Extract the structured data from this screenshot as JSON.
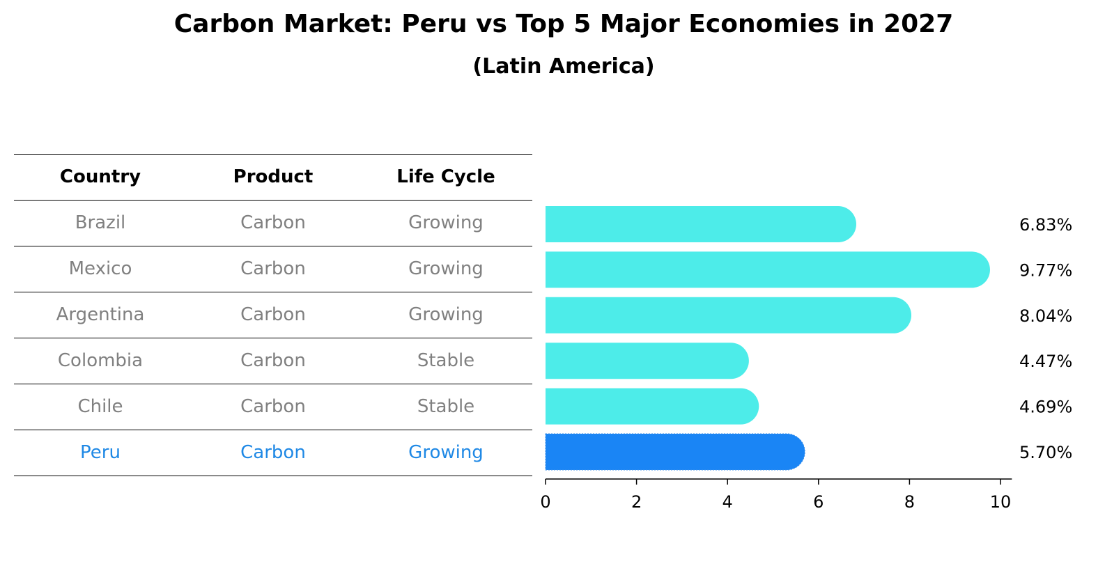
{
  "title": "Carbon Market: Peru vs Top 5 Major Economies in 2027",
  "subtitle": "(Latin America)",
  "table": {
    "headers": [
      "Country",
      "Product",
      "Life Cycle"
    ],
    "rows": [
      [
        "Brazil",
        "Carbon",
        "Growing"
      ],
      [
        "Mexico",
        "Carbon",
        "Growing"
      ],
      [
        "Argentina",
        "Carbon",
        "Growing"
      ],
      [
        "Colombia",
        "Carbon",
        "Stable"
      ],
      [
        "Chile",
        "Carbon",
        "Stable"
      ],
      [
        "Peru",
        "Carbon",
        "Growing"
      ]
    ]
  },
  "colors": {
    "bar": "#4dece9",
    "highlight": "#1a85f5",
    "muted_text": "#808080",
    "highlight_text": "#1e88e5"
  },
  "chart_data": {
    "type": "bar",
    "orientation": "horizontal",
    "categories": [
      "Brazil",
      "Mexico",
      "Argentina",
      "Colombia",
      "Chile",
      "Peru"
    ],
    "values": [
      6.83,
      9.77,
      8.04,
      4.47,
      4.69,
      5.7
    ],
    "value_labels": [
      "6.83%",
      "9.77%",
      "8.04%",
      "4.47%",
      "4.69%",
      "5.70%"
    ],
    "highlight": "Peru",
    "xlim": [
      0,
      10.25
    ],
    "xticks": [
      0,
      2,
      4,
      6,
      8,
      10
    ],
    "xtick_labels": [
      "0",
      "2",
      "4",
      "6",
      "8",
      "10"
    ],
    "title": "Carbon Market: Peru vs Top 5 Major Economies in 2027",
    "xlabel": "",
    "ylabel": ""
  }
}
